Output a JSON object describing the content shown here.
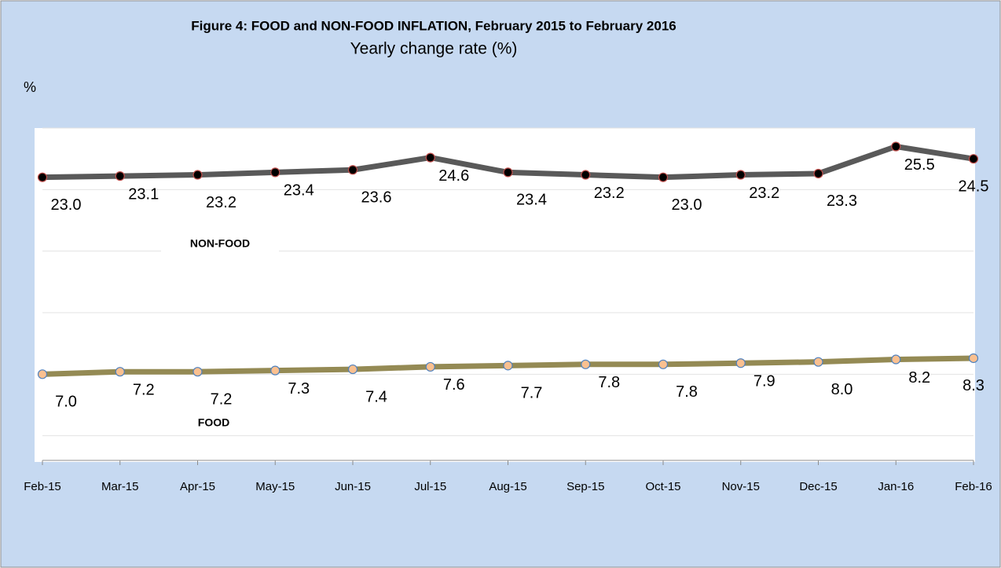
{
  "chart_data": {
    "type": "line",
    "title": "Figure 4: FOOD and NON-FOOD INFLATION, February 2015 to February  2016",
    "subtitle": "Yearly change rate (%)",
    "y_label": "%",
    "categories": [
      "Feb-15",
      "Mar-15",
      "Apr-15",
      "May-15",
      "Jun-15",
      "Jul-15",
      "Aug-15",
      "Sep-15",
      "Oct-15",
      "Nov-15",
      "Dec-15",
      "Jan-16",
      "Feb-16"
    ],
    "series": [
      {
        "name": "NON-FOOD",
        "color": "#595959",
        "marker_fill": "#000000",
        "marker_stroke": "#c0504d",
        "values": [
          23.0,
          23.1,
          23.2,
          23.4,
          23.6,
          24.6,
          23.4,
          23.2,
          23.0,
          23.2,
          23.3,
          25.5,
          24.5
        ],
        "value_labels": [
          "23.0",
          "23.1",
          "23.2",
          "23.4",
          "23.6",
          "24.6",
          "23.4",
          "23.2",
          "23.0",
          "23.2",
          "23.3",
          "25.5",
          "24.5"
        ]
      },
      {
        "name": "FOOD",
        "color": "#948a54",
        "marker_fill": "#fac090",
        "marker_stroke": "#4f81bd",
        "values": [
          7.0,
          7.2,
          7.2,
          7.3,
          7.4,
          7.6,
          7.7,
          7.8,
          7.8,
          7.9,
          8.0,
          8.2,
          8.3
        ],
        "value_labels": [
          "7.0",
          "7.2",
          "7.2",
          "7.3",
          "7.4",
          "7.6",
          "7.7",
          "7.8",
          "7.8",
          "7.9",
          "8.0",
          "8.2",
          "8.3"
        ]
      }
    ],
    "ylim": [
      0,
      27
    ],
    "yticks": [
      2,
      7,
      12,
      17,
      22,
      27
    ],
    "grid": true
  }
}
